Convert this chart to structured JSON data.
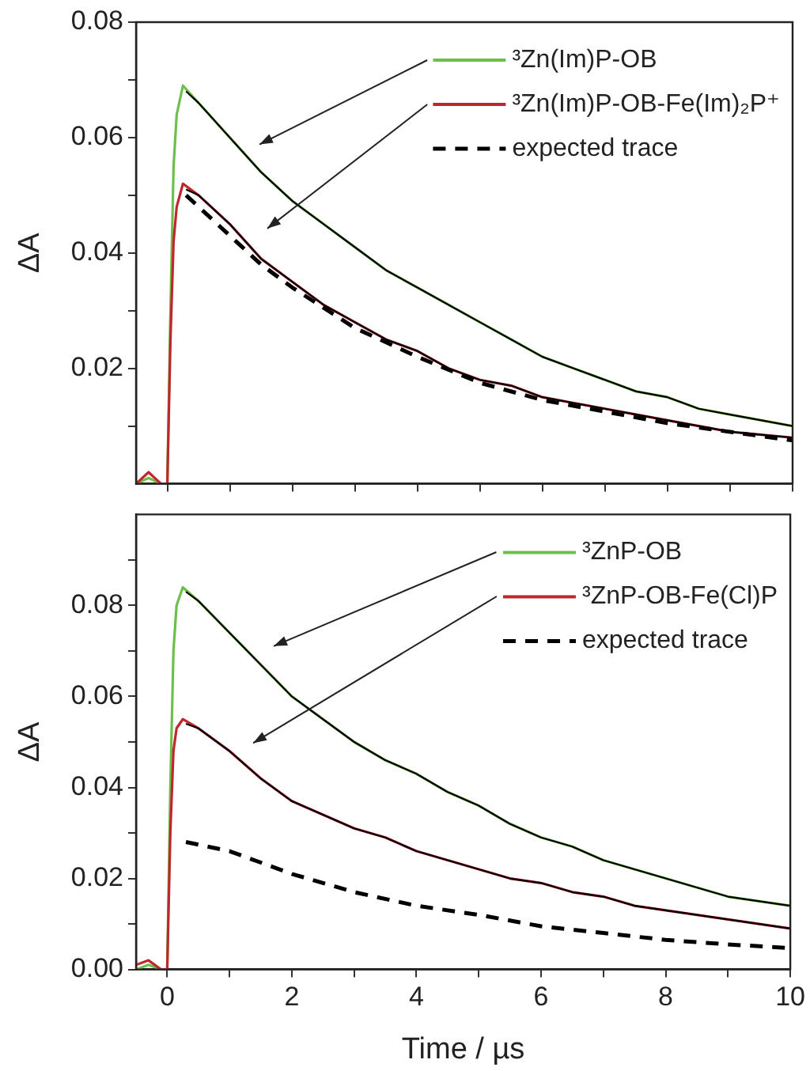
{
  "chart_data": [
    {
      "type": "line",
      "ylabel": "ΔA",
      "xlim": [
        -0.5,
        10
      ],
      "ylim": [
        0,
        0.08
      ],
      "xticks": [
        0,
        {
          "value": 1,
          "label": null
        },
        2,
        {
          "value": 3,
          "label": null
        },
        4,
        {
          "value": 5,
          "label": null
        },
        6,
        {
          "value": 7,
          "label": null
        },
        8,
        {
          "value": 9,
          "label": null
        },
        10
      ],
      "yticks": [
        {
          "value": 0.01,
          "label": null
        },
        {
          "value": 0.02,
          "label": "0.02"
        },
        {
          "value": 0.03,
          "label": null
        },
        {
          "value": 0.04,
          "label": "0.04"
        },
        {
          "value": 0.05,
          "label": null
        },
        {
          "value": 0.06,
          "label": "0.06"
        },
        {
          "value": 0.07,
          "label": null
        },
        {
          "value": 0.08,
          "label": "0.08"
        }
      ],
      "tick_labels": "y",
      "grid": false,
      "marker": "none",
      "legend": "top right",
      "series": [
        {
          "name": "³Zn(Im)P-OB",
          "color": "#6cc04a",
          "x": [
            -0.5,
            -0.3,
            -0.1,
            0,
            0.05,
            0.1,
            0.15,
            0.25,
            0.5,
            1,
            1.5,
            2,
            2.5,
            3,
            3.5,
            4,
            4.5,
            5,
            5.5,
            6,
            6.5,
            7,
            7.5,
            8,
            8.5,
            9,
            9.5,
            10
          ],
          "values": [
            0,
            0.001,
            0,
            0,
            0.03,
            0.055,
            0.064,
            0.069,
            0.066,
            0.06,
            0.054,
            0.049,
            0.045,
            0.041,
            0.037,
            0.034,
            0.031,
            0.028,
            0.025,
            0.022,
            0.02,
            0.018,
            0.016,
            0.015,
            0.013,
            0.012,
            0.011,
            0.01
          ]
        },
        {
          "name": "³Zn(Im)P-OB-Fe(Im)₂P⁺",
          "color": "#c0272d",
          "x": [
            -0.5,
            -0.3,
            -0.1,
            0,
            0.05,
            0.1,
            0.15,
            0.25,
            0.5,
            1,
            1.5,
            2,
            2.5,
            3,
            3.5,
            4,
            4.5,
            5,
            5.5,
            6,
            6.5,
            7,
            7.5,
            8,
            8.5,
            9,
            9.5,
            10
          ],
          "values": [
            0,
            0.002,
            0,
            0,
            0.025,
            0.042,
            0.048,
            0.052,
            0.05,
            0.045,
            0.039,
            0.035,
            0.031,
            0.028,
            0.025,
            0.023,
            0.02,
            0.018,
            0.017,
            0.015,
            0.014,
            0.013,
            0.012,
            0.011,
            0.01,
            0.009,
            0.0085,
            0.008
          ]
        },
        {
          "name": "expected trace",
          "color": "#000000",
          "line_style": "dashed",
          "x": [
            0.3,
            0.5,
            1,
            1.5,
            2,
            3,
            4,
            5,
            6,
            7,
            8,
            9,
            10
          ],
          "values": [
            0.05,
            0.048,
            0.043,
            0.038,
            0.034,
            0.027,
            0.022,
            0.0175,
            0.0145,
            0.0125,
            0.0105,
            0.009,
            0.0075
          ]
        },
        {
          "color": "#000000",
          "x": [
            0.3,
            0.5,
            1,
            1.5,
            2,
            2.5,
            3,
            3.5,
            4,
            4.5,
            5,
            5.5,
            6,
            6.5,
            7,
            7.5,
            8,
            8.5,
            9,
            9.5,
            10
          ],
          "values": [
            0.068,
            0.066,
            0.06,
            0.054,
            0.049,
            0.045,
            0.041,
            0.037,
            0.034,
            0.031,
            0.028,
            0.025,
            0.022,
            0.02,
            0.018,
            0.016,
            0.015,
            0.013,
            0.012,
            0.011,
            0.01
          ]
        },
        {
          "color": "#000000",
          "x": [
            0.3,
            0.5,
            1,
            1.5,
            2,
            2.5,
            3,
            3.5,
            4,
            4.5,
            5,
            5.5,
            6,
            6.5,
            7,
            7.5,
            8,
            8.5,
            9,
            9.5,
            10
          ],
          "values": [
            0.051,
            0.05,
            0.045,
            0.039,
            0.035,
            0.031,
            0.028,
            0.025,
            0.023,
            0.02,
            0.018,
            0.017,
            0.015,
            0.014,
            0.013,
            0.012,
            0.011,
            0.01,
            0.009,
            0.0085,
            0.008
          ]
        }
      ]
    },
    {
      "type": "line",
      "xlabel": "Time / µs",
      "ylabel": "ΔA",
      "xlim": [
        -0.5,
        10
      ],
      "ylim": [
        0,
        0.1
      ],
      "xticks": [
        0,
        {
          "value": 1,
          "label": null
        },
        2,
        {
          "value": 3,
          "label": null
        },
        4,
        {
          "value": 5,
          "label": null
        },
        6,
        {
          "value": 7,
          "label": null
        },
        8,
        {
          "value": 9,
          "label": null
        },
        10
      ],
      "yticks": [
        {
          "value": 0,
          "label": "0.00"
        },
        {
          "value": 0.01,
          "label": null
        },
        {
          "value": 0.02,
          "label": "0.02"
        },
        {
          "value": 0.03,
          "label": null
        },
        {
          "value": 0.04,
          "label": "0.04"
        },
        {
          "value": 0.05,
          "label": null
        },
        {
          "value": 0.06,
          "label": "0.06"
        },
        {
          "value": 0.07,
          "label": null
        },
        {
          "value": 0.08,
          "label": "0.08"
        },
        {
          "value": 0.09,
          "label": null
        }
      ],
      "grid": false,
      "marker": "none",
      "legend": "top right",
      "series": [
        {
          "name": "³ZnP-OB",
          "color": "#6cc04a",
          "x": [
            -0.5,
            -0.3,
            -0.1,
            0,
            0.05,
            0.1,
            0.15,
            0.25,
            0.5,
            1,
            1.5,
            2,
            2.5,
            3,
            3.5,
            4,
            4.5,
            5,
            5.5,
            6,
            6.5,
            7,
            7.5,
            8,
            8.5,
            9,
            9.5,
            10
          ],
          "values": [
            0,
            0.001,
            0,
            0,
            0.04,
            0.07,
            0.08,
            0.084,
            0.081,
            0.074,
            0.067,
            0.06,
            0.055,
            0.05,
            0.046,
            0.043,
            0.039,
            0.036,
            0.032,
            0.029,
            0.027,
            0.024,
            0.022,
            0.02,
            0.018,
            0.016,
            0.015,
            0.014
          ]
        },
        {
          "name": "³ZnP-OB-Fe(Cl)P",
          "color": "#c0272d",
          "x": [
            -0.5,
            -0.3,
            -0.1,
            0,
            0.05,
            0.1,
            0.15,
            0.25,
            0.5,
            1,
            1.5,
            2,
            2.5,
            3,
            3.5,
            4,
            4.5,
            5,
            5.5,
            6,
            6.5,
            7,
            7.5,
            8,
            8.5,
            9,
            9.5,
            10
          ],
          "values": [
            0.001,
            0.002,
            0,
            0,
            0.03,
            0.048,
            0.053,
            0.055,
            0.053,
            0.048,
            0.042,
            0.037,
            0.034,
            0.031,
            0.029,
            0.026,
            0.024,
            0.022,
            0.02,
            0.019,
            0.017,
            0.016,
            0.014,
            0.013,
            0.012,
            0.011,
            0.01,
            0.009
          ]
        },
        {
          "name": "expected trace",
          "color": "#000000",
          "line_style": "dashed",
          "x": [
            0.3,
            1,
            2,
            3,
            4,
            5,
            6,
            7,
            8,
            9,
            10
          ],
          "values": [
            0.028,
            0.026,
            0.021,
            0.017,
            0.014,
            0.012,
            0.0095,
            0.008,
            0.0065,
            0.0055,
            0.0047
          ]
        },
        {
          "color": "#000000",
          "x": [
            0.3,
            0.5,
            1,
            1.5,
            2,
            2.5,
            3,
            3.5,
            4,
            4.5,
            5,
            5.5,
            6,
            6.5,
            7,
            7.5,
            8,
            8.5,
            9,
            9.5,
            10
          ],
          "values": [
            0.083,
            0.081,
            0.074,
            0.067,
            0.06,
            0.055,
            0.05,
            0.046,
            0.043,
            0.039,
            0.036,
            0.032,
            0.029,
            0.027,
            0.024,
            0.022,
            0.02,
            0.018,
            0.016,
            0.015,
            0.014
          ]
        },
        {
          "color": "#000000",
          "x": [
            0.3,
            0.5,
            1,
            1.5,
            2,
            2.5,
            3,
            3.5,
            4,
            4.5,
            5,
            5.5,
            6,
            6.5,
            7,
            7.5,
            8,
            8.5,
            9,
            9.5,
            10
          ],
          "values": [
            0.054,
            0.053,
            0.048,
            0.042,
            0.037,
            0.034,
            0.031,
            0.029,
            0.026,
            0.024,
            0.022,
            0.02,
            0.019,
            0.017,
            0.016,
            0.014,
            0.013,
            0.012,
            0.011,
            0.01,
            0.009
          ]
        }
      ]
    }
  ]
}
